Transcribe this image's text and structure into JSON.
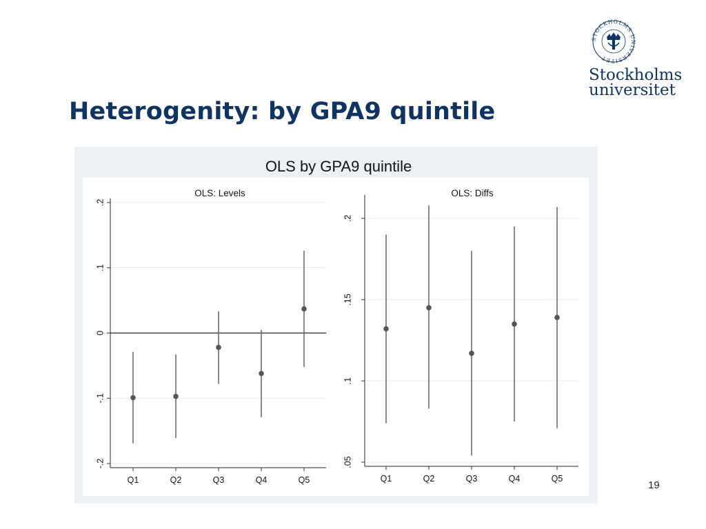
{
  "slide": {
    "title": "Heterogenity: by GPA9 quintile",
    "page_number": "19",
    "logo": {
      "line1": "Stockholms",
      "line2": "universitet",
      "seal_text": "STOCKHOLMS UNIVERSITET",
      "color": "#0f3462"
    }
  },
  "chart_data": {
    "title": "OLS by GPA9 quintile",
    "colors": {
      "background": "#eaf0f3",
      "plot": "#ffffff",
      "marker": "#555555",
      "grid": "#e4e8eb"
    },
    "panels": [
      {
        "type": "scatter",
        "title": "OLS: Levels",
        "categories": [
          "Q1",
          "Q2",
          "Q3",
          "Q4",
          "Q5"
        ],
        "ylim": [
          -0.2,
          0.2
        ],
        "yticks": [
          -0.2,
          -0.1,
          0,
          0.1,
          0.2
        ],
        "ytick_labels": [
          "-.2",
          "-.1",
          "0",
          ".1",
          ".2"
        ],
        "zero_line": true,
        "grid": true,
        "points": [
          {
            "x": "Q1",
            "y": -0.099,
            "lo": -0.169,
            "hi": -0.029
          },
          {
            "x": "Q2",
            "y": -0.097,
            "lo": -0.161,
            "hi": -0.033
          },
          {
            "x": "Q3",
            "y": -0.022,
            "lo": -0.078,
            "hi": 0.033
          },
          {
            "x": "Q4",
            "y": -0.062,
            "lo": -0.129,
            "hi": 0.005
          },
          {
            "x": "Q5",
            "y": 0.037,
            "lo": -0.052,
            "hi": 0.126
          }
        ]
      },
      {
        "type": "scatter",
        "title": "OLS: Diffs",
        "categories": [
          "Q1",
          "Q2",
          "Q3",
          "Q4",
          "Q5"
        ],
        "ylim": [
          0.05,
          0.21
        ],
        "yticks": [
          0.05,
          0.1,
          0.15,
          0.2
        ],
        "ytick_labels": [
          ".05",
          ".1",
          ".15",
          ".2"
        ],
        "zero_line": false,
        "grid": true,
        "points": [
          {
            "x": "Q1",
            "y": 0.132,
            "lo": 0.074,
            "hi": 0.19
          },
          {
            "x": "Q2",
            "y": 0.145,
            "lo": 0.083,
            "hi": 0.208
          },
          {
            "x": "Q3",
            "y": 0.117,
            "lo": 0.054,
            "hi": 0.18
          },
          {
            "x": "Q4",
            "y": 0.135,
            "lo": 0.075,
            "hi": 0.195
          },
          {
            "x": "Q5",
            "y": 0.139,
            "lo": 0.071,
            "hi": 0.207
          }
        ]
      }
    ]
  }
}
